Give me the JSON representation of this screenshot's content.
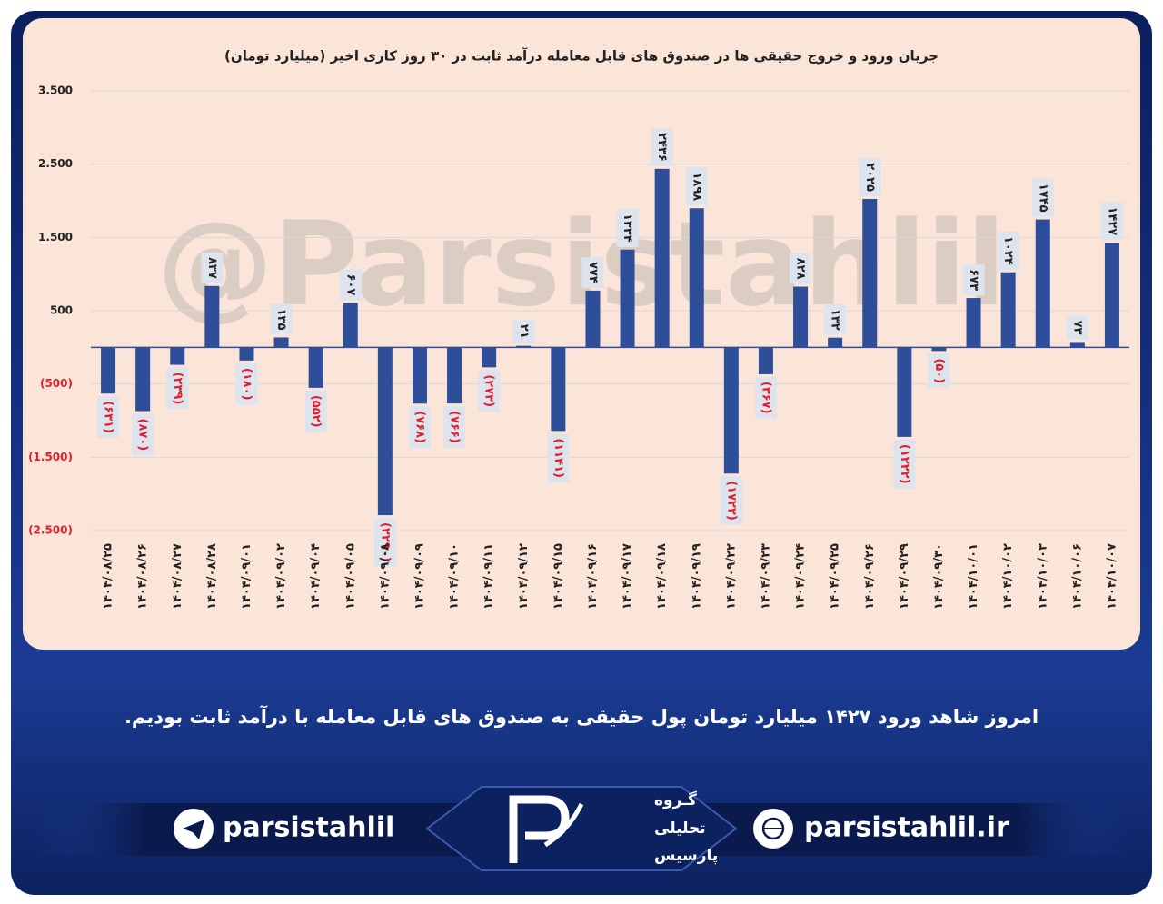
{
  "chart_data": {
    "type": "bar",
    "title": "جریان ورود و خروج حقیقی ها در صندوق های قابل معامله درآمد ثابت در ۳۰ روز کاری اخیر (میلیارد تومان)",
    "watermark": "@Parsistahlil",
    "categories": [
      "۱۴۰۴/۰۸/۲۵",
      "۱۴۰۴/۰۸/۲۶",
      "۱۴۰۴/۰۸/۲۷",
      "۱۴۰۴/۰۸/۲۸",
      "۱۴۰۴/۰۹/۰۱",
      "۱۴۰۴/۰۹/۰۲",
      "۱۴۰۴/۰۹/۰۴",
      "۱۴۰۴/۰۹/۰۵",
      "۱۴۰۴/۰۹/۰۸",
      "۱۴۰۴/۰۹/۰۹",
      "۱۴۰۴/۰۹/۱۰",
      "۱۴۰۴/۰۹/۱۱",
      "۱۴۰۴/۰۹/۱۲",
      "۱۴۰۴/۰۹/۱۵",
      "۱۴۰۴/۰۹/۱۶",
      "۱۴۰۴/۰۹/۱۷",
      "۱۴۰۴/۰۹/۱۸",
      "۱۴۰۴/۰۹/۱۹",
      "۱۴۰۴/۰۹/۲۲",
      "۱۴۰۴/۰۹/۲۳",
      "۱۴۰۴/۰۹/۲۴",
      "۱۴۰۴/۰۹/۲۵",
      "۱۴۰۴/۰۹/۲۶",
      "۱۴۰۴/۰۹/۲۹",
      "۱۴۰۴/۰۹/۳۰",
      "۱۴۰۴/۱۰/۰۱",
      "۱۴۰۴/۱۰/۰۲",
      "۱۴۰۴/۱۰/۰۳",
      "۱۴۰۴/۱۰/۰۶",
      "۱۴۰۴/۱۰/۰۷"
    ],
    "values": [
      -631,
      -870,
      -239,
      837,
      -180,
      135,
      -552,
      607,
      -2290,
      -768,
      -766,
      -273,
      21,
      -1141,
      774,
      1334,
      2436,
      1898,
      -1722,
      -367,
      828,
      132,
      2025,
      -1222,
      -50,
      673,
      1024,
      1745,
      73,
      1427
    ],
    "value_labels": [
      "(۶۳۱)",
      "(۸۷۰)",
      "(۲۳۹)",
      "۸۳۷",
      "(۱۸۰)",
      "۱۳۵",
      "(۵۵۲)",
      "۶۰۷",
      "(۲۲۹۰)",
      "(۷۶۸)",
      "(۷۶۶)",
      "(۲۷۳)",
      "۲۱",
      "(۱۱۴۱)",
      "۷۷۴",
      "۱۳۳۴",
      "۲۴۳۶",
      "۱۸۹۸",
      "(۱۷۲۲)",
      "(۳۶۷)",
      "۸۲۸",
      "۱۳۲",
      "۲۰۲۵",
      "(۱۲۲۲)",
      "(۵۰)",
      "۶۷۳",
      "۱۰۲۴",
      "۱۷۴۵",
      "۷۳",
      "۱۴۲۷"
    ],
    "color": "#2f4e9a",
    "ylim": [
      -2500,
      3500
    ],
    "yticks": [
      {
        "value": 3500,
        "label": "3.500"
      },
      {
        "value": 2500,
        "label": "2.500"
      },
      {
        "value": 1500,
        "label": "1.500"
      },
      500,
      {
        "value": -500,
        "label": "(500)"
      },
      {
        "value": -1500,
        "label": "(1.500)"
      },
      {
        "value": -2500,
        "label": "(2.500)"
      }
    ],
    "grid": true
  },
  "caption": "امروز شاهد ورود ۱۴۲۷ میلیارد تومان پول حقیقی به صندوق های قابل معامله با درآمد ثابت بودیم.",
  "footer": {
    "telegram": "parsistahlil",
    "website": "parsistahlil.ir",
    "logo": [
      "گـروه",
      "تحلیلی",
      "پارسیس"
    ]
  }
}
